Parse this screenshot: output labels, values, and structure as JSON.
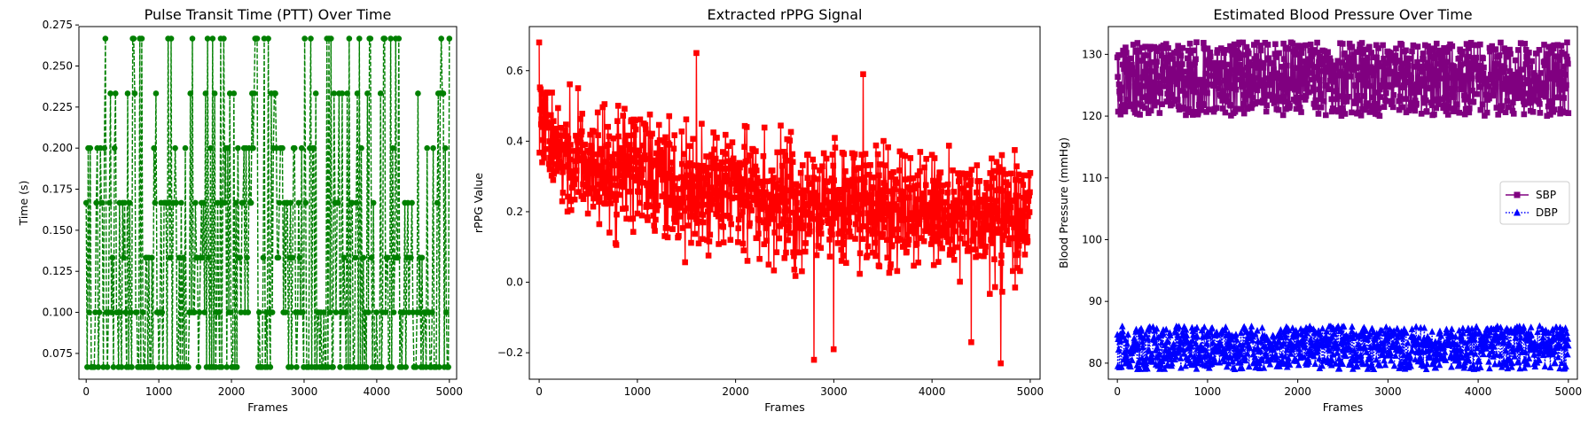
{
  "chart_data": [
    {
      "type": "line",
      "title": "Pulse Transit Time (PTT) Over Time",
      "xlabel": "Frames",
      "ylabel": "Time (s)",
      "xlim": [
        -100,
        5100
      ],
      "ylim": [
        0.0593,
        0.274
      ],
      "xticks": [
        0,
        1000,
        2000,
        3000,
        4000,
        5000
      ],
      "xtick_labels": [
        "0",
        "1000",
        "2000",
        "3000",
        "4000",
        "5000"
      ],
      "yticks": [
        0.075,
        0.1,
        0.125,
        0.15,
        0.175,
        0.2,
        0.225,
        0.25,
        0.275
      ],
      "ytick_labels": [
        "0.075",
        "0.100",
        "0.125",
        "0.150",
        "0.175",
        "0.200",
        "0.225",
        "0.250",
        "0.275"
      ],
      "grid": false,
      "legend": false,
      "series": [
        {
          "color": "#008000",
          "marker": "circle",
          "linestyle": "dashed",
          "x_range": [
            0,
            5000
          ],
          "discrete_levels": [
            0.0667,
            0.1,
            0.1333,
            0.1667,
            0.2,
            0.2333,
            0.2667
          ],
          "level_weights": [
            30,
            18,
            14,
            12,
            10,
            9,
            7
          ],
          "n_points": 360
        }
      ]
    },
    {
      "type": "line",
      "title": "Extracted rPPG Signal",
      "xlabel": "Frames",
      "ylabel": "rPPG Value",
      "xlim": [
        -100,
        5100
      ],
      "ylim": [
        -0.275,
        0.725
      ],
      "xticks": [
        0,
        1000,
        2000,
        3000,
        4000,
        5000
      ],
      "xtick_labels": [
        "0",
        "1000",
        "2000",
        "3000",
        "4000",
        "5000"
      ],
      "yticks": [
        -0.2,
        0.0,
        0.2,
        0.4,
        0.6
      ],
      "ytick_labels": [
        "−0.2",
        "0.0",
        "0.2",
        "0.4",
        "0.6"
      ],
      "grid": false,
      "legend": false,
      "series": [
        {
          "color": "#ff0000",
          "marker": "square",
          "linestyle": "solid",
          "x_range": [
            0,
            5000
          ],
          "trend": [
            [
              0,
              0.45
            ],
            [
              300,
              0.35
            ],
            [
              1000,
              0.3
            ],
            [
              2000,
              0.25
            ],
            [
              3000,
              0.22
            ],
            [
              4000,
              0.2
            ],
            [
              5000,
              0.18
            ]
          ],
          "spread": 0.12,
          "extremes": [
            [
              0,
              0.68
            ],
            [
              1600,
              0.65
            ],
            [
              3300,
              0.59
            ],
            [
              2800,
              -0.22
            ],
            [
              4700,
              -0.23
            ],
            [
              3000,
              -0.19
            ],
            [
              4400,
              -0.17
            ]
          ],
          "n_points": 1300
        }
      ]
    },
    {
      "type": "line",
      "title": "Estimated Blood Pressure Over Time",
      "xlabel": "Frames",
      "ylabel": "Blood Pressure (mmHg)",
      "xlim": [
        -100,
        5100
      ],
      "ylim": [
        77.4,
        134.5
      ],
      "xticks": [
        0,
        1000,
        2000,
        3000,
        4000,
        5000
      ],
      "xtick_labels": [
        "0",
        "1000",
        "2000",
        "3000",
        "4000",
        "5000"
      ],
      "yticks": [
        80,
        90,
        100,
        110,
        120,
        130
      ],
      "ytick_labels": [
        "80",
        "90",
        "100",
        "110",
        "120",
        "130"
      ],
      "grid": false,
      "legend": true,
      "legend_position": "center-right",
      "series": [
        {
          "name": "SBP",
          "color": "#800080",
          "marker": "square",
          "linestyle": "solid",
          "x_range": [
            0,
            5000
          ],
          "band": [
            120,
            132
          ],
          "n_points": 1100
        },
        {
          "name": "DBP",
          "color": "#0000ff",
          "marker": "triangle",
          "linestyle": "dotted",
          "x_range": [
            0,
            5000
          ],
          "band": [
            79,
            86
          ],
          "n_points": 1100
        }
      ]
    }
  ]
}
